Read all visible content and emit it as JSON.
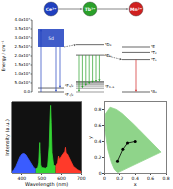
{
  "diagram": {
    "ions": [
      {
        "label": "Ce³⁺",
        "color": "#1f3fbf"
      },
      {
        "label": "Tb³⁺",
        "color": "#2aa02a"
      },
      {
        "label": "Mn²⁺",
        "color": "#d02020"
      }
    ],
    "energy_axis": {
      "title": "Energy / cm⁻¹",
      "lim": [
        0,
        40000
      ],
      "ticks": [
        {
          "value": 0,
          "label": "0.0"
        },
        {
          "value": 5000,
          "label": "5.0x10³"
        },
        {
          "value": 10000,
          "label": "1.0x10⁴"
        },
        {
          "value": 15000,
          "label": "1.5x10⁴"
        },
        {
          "value": 20000,
          "label": "2.0x10⁴"
        },
        {
          "value": 25000,
          "label": "2.5x10⁴"
        },
        {
          "value": 30000,
          "label": "3.0x10⁴"
        },
        {
          "value": 35000,
          "label": "3.5x10⁴"
        },
        {
          "value": 40000,
          "label": "4.0x10⁴"
        }
      ]
    },
    "columns": [
      {
        "band": {
          "label": "5d",
          "from": 25000,
          "to": 35000
        },
        "levels": [
          {
            "label": "²F₅/₂",
            "energy": 2200
          },
          {
            "label": "²F₇/₂",
            "energy": 0
          }
        ]
      },
      {
        "levels": [
          {
            "label": "⁵D₃",
            "energy": 26300
          },
          {
            "label": "⁵D₄",
            "energy": 20500
          },
          {
            "label": "⁷F₀₋₆",
            "energies": [
              0,
              2100,
              3300,
              4300,
              5000,
              5500,
              5800
            ]
          }
        ]
      },
      {
        "levels": [
          {
            "label": "⁴E",
            "energy": 25000
          },
          {
            "label": "⁴T₂",
            "energy": 22000
          },
          {
            "label": "⁴T₁",
            "energy": 18000
          },
          {
            "label": "⁶A₁",
            "energy": 0
          }
        ]
      }
    ]
  },
  "chart_data": [
    {
      "type": "line",
      "x_label": "Wavelength (nm)",
      "y_label": "Intensity (a.u.)",
      "xlim": [
        350,
        700
      ],
      "xticks": [
        400,
        500,
        600,
        700
      ],
      "ylim": [
        0,
        1.05
      ],
      "tick_labels": "x",
      "series": [
        {
          "type": "area",
          "color": "#3a5cff",
          "x": [
            350,
            360,
            370,
            380,
            390,
            400,
            410,
            420,
            430,
            440,
            450,
            460,
            470
          ],
          "values": [
            0.02,
            0.05,
            0.1,
            0.17,
            0.24,
            0.28,
            0.29,
            0.27,
            0.22,
            0.17,
            0.12,
            0.08,
            0.06
          ]
        },
        {
          "type": "area",
          "color": "#33d633",
          "x": [
            470,
            480,
            485,
            488,
            490,
            492,
            495,
            500,
            510,
            520,
            530,
            538,
            542,
            545,
            548,
            552,
            560,
            570
          ],
          "values": [
            0.06,
            0.08,
            0.15,
            0.35,
            0.45,
            0.3,
            0.12,
            0.08,
            0.07,
            0.07,
            0.1,
            0.4,
            0.8,
            1.0,
            0.75,
            0.3,
            0.12,
            0.1
          ]
        },
        {
          "type": "area",
          "color": "#ff3a2a",
          "x": [
            570,
            580,
            585,
            590,
            600,
            610,
            617,
            620,
            623,
            630,
            640,
            650,
            660,
            680,
            700
          ],
          "values": [
            0.1,
            0.15,
            0.25,
            0.2,
            0.25,
            0.3,
            0.32,
            0.38,
            0.3,
            0.28,
            0.22,
            0.16,
            0.1,
            0.05,
            0.02
          ]
        }
      ]
    },
    {
      "type": "scatter",
      "x_label": "x",
      "y_label": "y",
      "xlim": [
        0,
        0.8
      ],
      "xticks": [
        0,
        0.2,
        0.4,
        0.6,
        0.8
      ],
      "ylim": [
        0,
        0.9
      ],
      "yticks": [
        0,
        0.2,
        0.4,
        0.6,
        0.8
      ],
      "series": [
        {
          "type": "area",
          "color": "#8fd48a",
          "x": [
            0.175,
            0.172,
            0.144,
            0.124,
            0.091,
            0.045,
            0.008,
            0.014,
            0.074,
            0.155,
            0.23,
            0.302,
            0.373,
            0.444,
            0.512,
            0.575,
            0.627,
            0.666,
            0.735,
            0.175
          ],
          "values": [
            0.005,
            0.005,
            0.03,
            0.058,
            0.133,
            0.295,
            0.538,
            0.75,
            0.834,
            0.806,
            0.754,
            0.692,
            0.624,
            0.555,
            0.487,
            0.424,
            0.373,
            0.334,
            0.265,
            0.005
          ]
        },
        {
          "type": "line",
          "color": "#000000",
          "marker": "circle",
          "x": [
            0.17,
            0.24,
            0.3,
            0.4
          ],
          "values": [
            0.15,
            0.3,
            0.38,
            0.4
          ]
        }
      ]
    }
  ]
}
